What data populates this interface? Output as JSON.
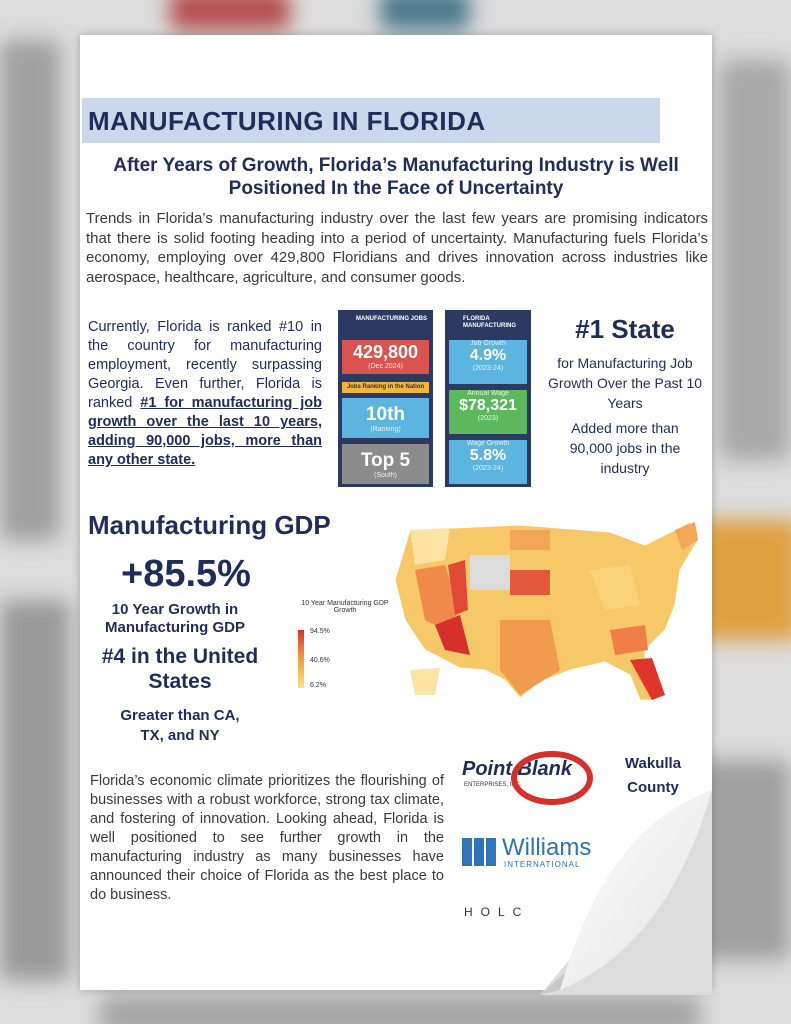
{
  "header": {
    "title": "MANUFACTURING IN FLORIDA",
    "subtitle": "After Years of Growth, Florida’s Manufacturing Industry is Well Positioned In the Face of Uncertainty"
  },
  "intro": "Trends in Florida’s manufacturing industry over the last few years are promising indicators that there is solid footing heading into a period of uncertainty. Manufacturing fuels Florida’s economy, employing over 429,800 Floridians and drives innovation across industries like aerospace, healthcare, agriculture, and consumer goods.",
  "ranking": {
    "text": "Currently, Florida is ranked #10 in the country for manufacturing employment, recently surpassing Georgia. Even further, Florida is ranked ",
    "highlight": "#1 for manufacturing job growth over the last 10 years, adding 90,000 jobs, more than any other state."
  },
  "jobs_card": {
    "header": "MANUFACTURING JOBS",
    "jobs": "429,800",
    "jobs_label": "(Dec 2024)",
    "strip": "Jobs Ranking in the Nation",
    "rank": "10th",
    "rank_label": "(Ranking)",
    "top": "Top 5",
    "top_label": "(South)"
  },
  "florida_card": {
    "header": "FLORIDA MANUFACTURING",
    "items": [
      {
        "label": "Job Growth",
        "value": "4.9%",
        "sub": "(2023-24)"
      },
      {
        "label": "Annual Wage",
        "value": "$78,321",
        "sub": "(2023)"
      },
      {
        "label": "Wage Growth",
        "value": "5.8%",
        "sub": "(2023-24)"
      }
    ]
  },
  "state": {
    "headline": "#1 State",
    "text": "for Manufacturing Job Growth Over the Past 10 Years",
    "added": "Added more than 90,000 jobs in the industry"
  },
  "gdp": {
    "heading": "Manufacturing GDP",
    "growth": "+85.5%",
    "growth_label": "10 Year Growth in Manufacturing GDP",
    "rank": "#4 in the United States",
    "compare": "Greater than CA, TX, and NY"
  },
  "map_legend": {
    "title": "10 Year Manufacturing GDP Growth",
    "high": "94.5%",
    "mid": "40.6%",
    "low": "6.2%"
  },
  "closing": "Florida’s economic climate prioritizes the flourishing of businesses with a robust workforce, strong tax climate, and fostering of innovation. Looking ahead, Florida is well positioned to see further growth in the manufacturing industry as many businesses have announced their choice of Florida as the best place to do business.",
  "logos": {
    "point_blank": "Point Blank",
    "point_blank_sub": "ENTERPRISES, INC.",
    "wakulla": "Wakulla County",
    "williams": "Williams",
    "williams_sub": "INTERNATIONAL",
    "holc": "HOLC"
  }
}
